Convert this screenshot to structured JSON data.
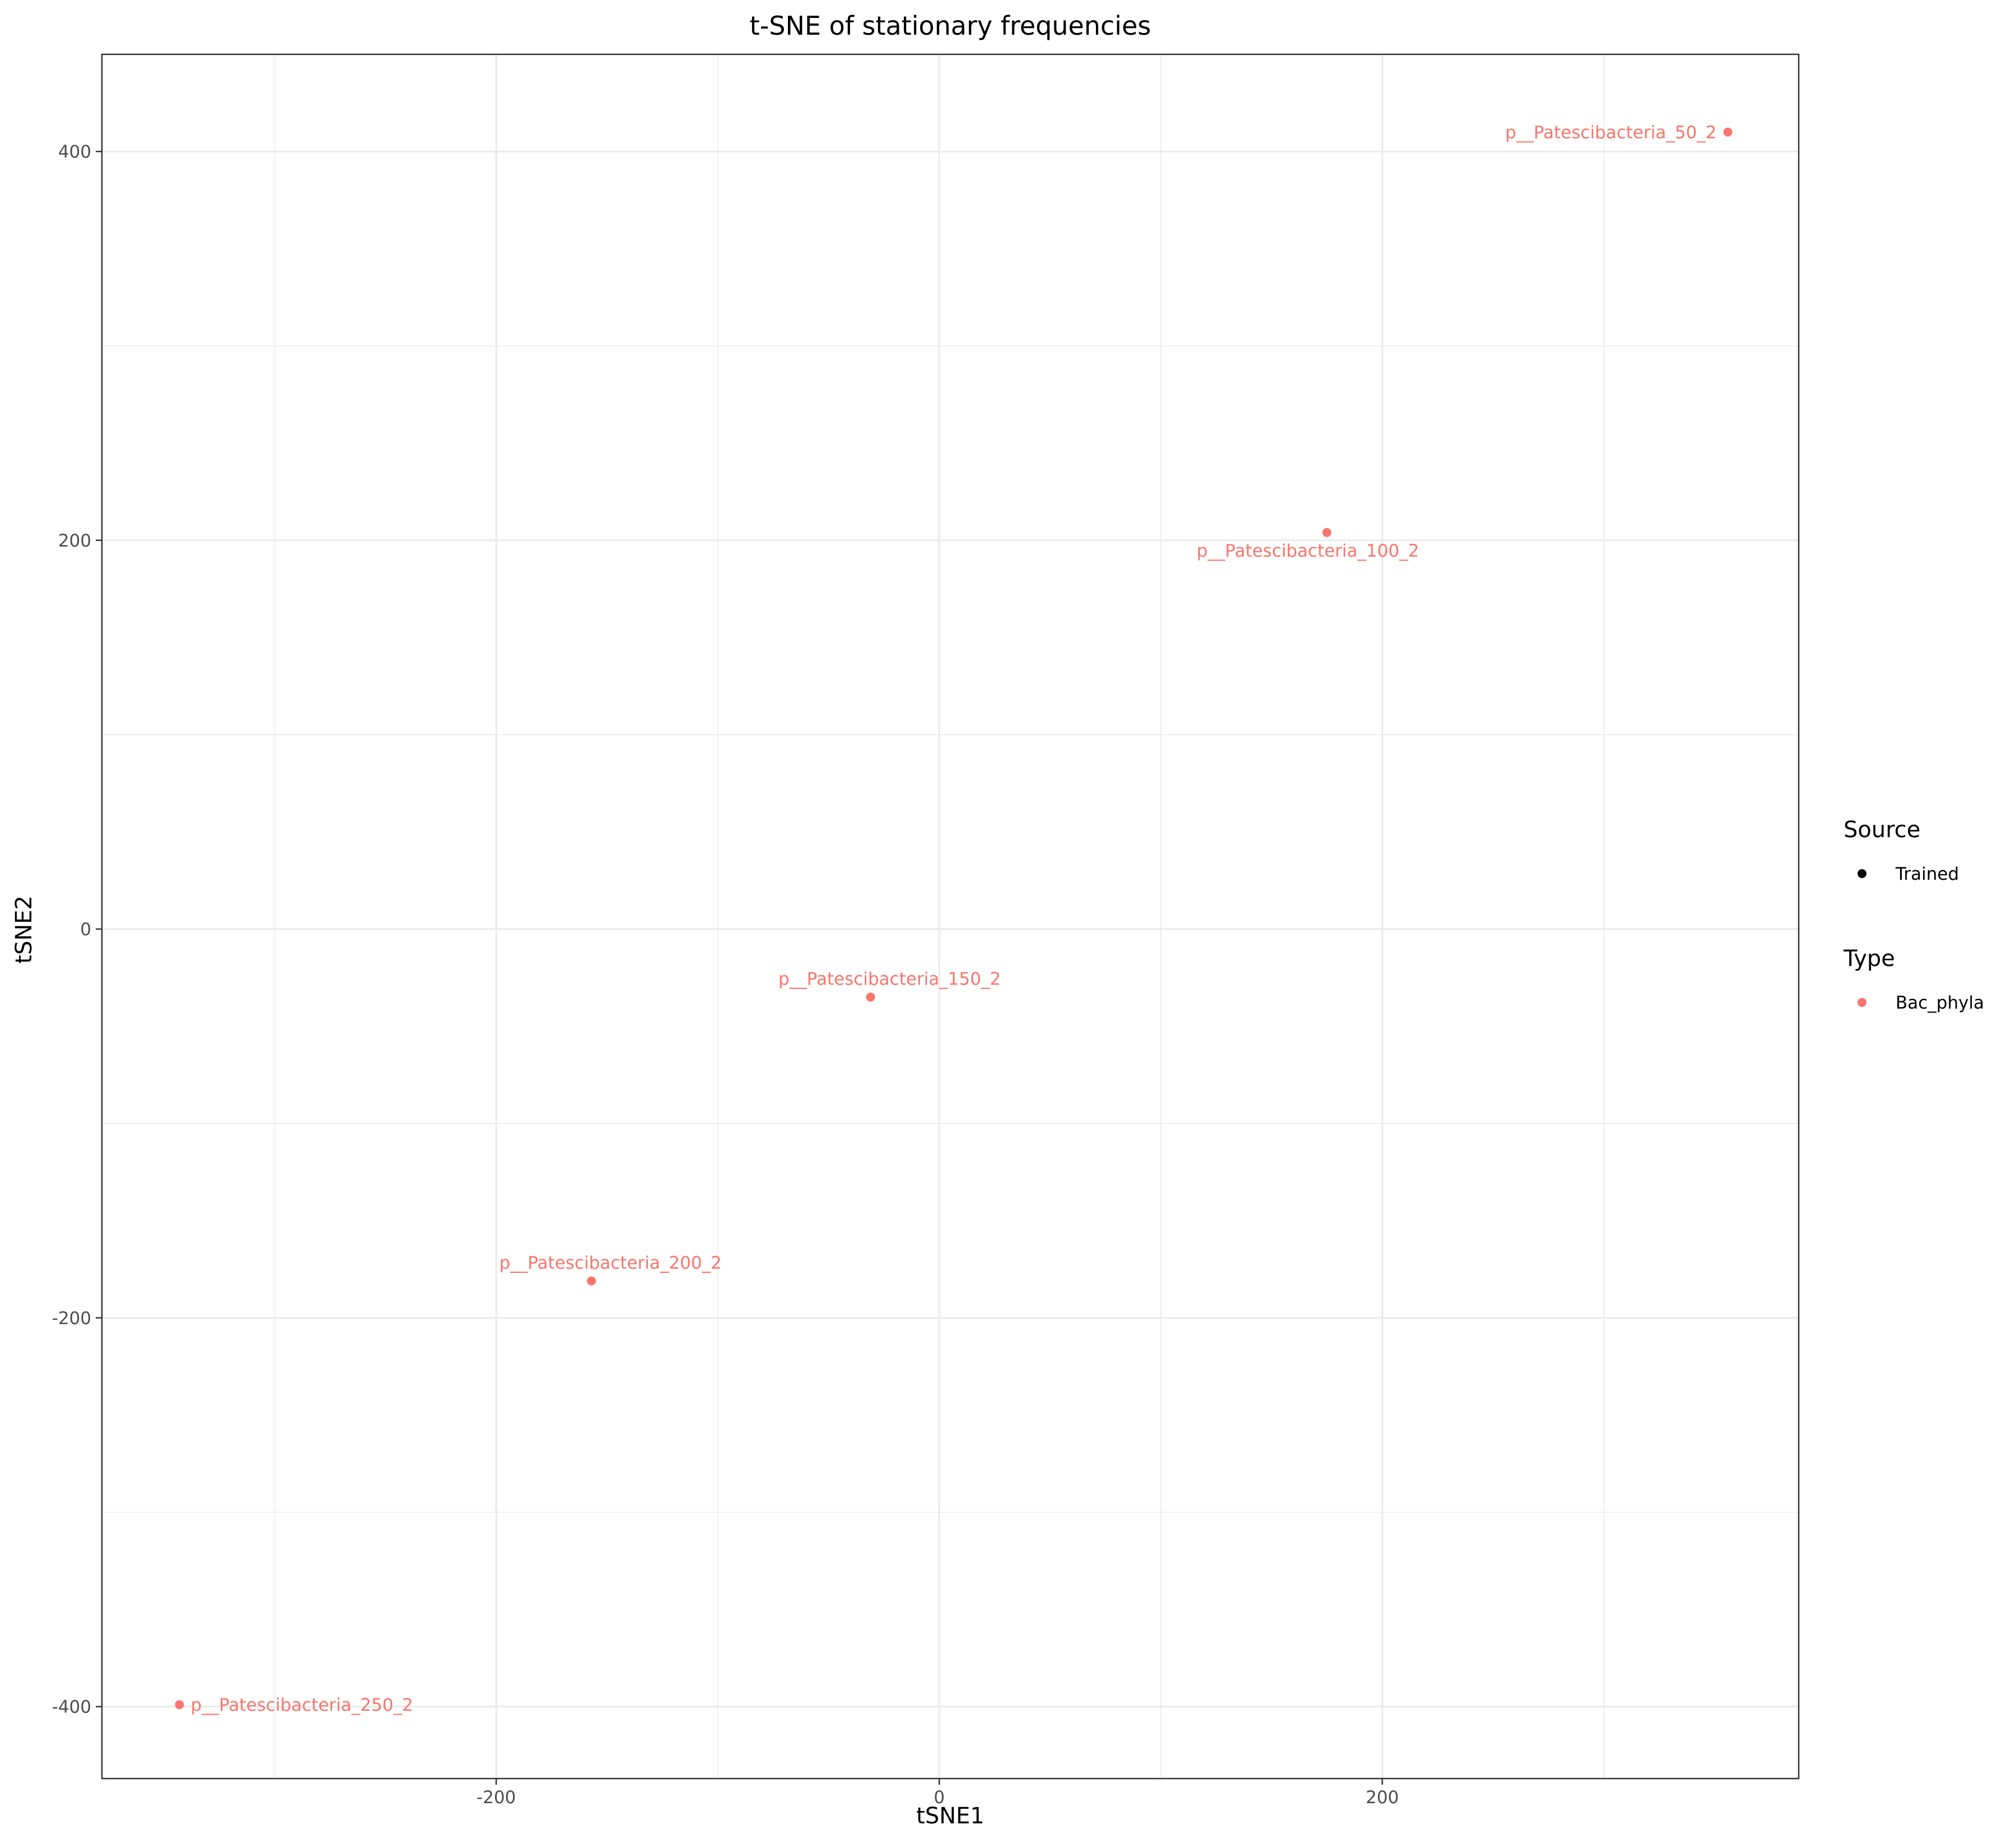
{
  "chart_data": {
    "type": "scatter",
    "title": "t-SNE of stationary frequencies",
    "xlabel": "tSNE1",
    "ylabel": "tSNE2",
    "xlim": [
      -378,
      388
    ],
    "ylim": [
      -437,
      450
    ],
    "xticks": [
      -200,
      0,
      200
    ],
    "yticks": [
      -400,
      -200,
      0,
      200,
      400
    ],
    "grid": true,
    "points": [
      {
        "x": 356,
        "y": 410,
        "label": "p__Patescibacteria_50_2",
        "type": "Bac_phyla",
        "source": "Trained"
      },
      {
        "x": 175,
        "y": 204,
        "label": "p__Patescibacteria_100_2",
        "type": "Bac_phyla",
        "source": "Trained"
      },
      {
        "x": -31,
        "y": -35,
        "label": "p__Patescibacteria_150_2",
        "type": "Bac_phyla",
        "source": "Trained"
      },
      {
        "x": -157,
        "y": -181,
        "label": "p__Patescibacteria_200_2",
        "type": "Bac_phyla",
        "source": "Trained"
      },
      {
        "x": -343,
        "y": -399,
        "label": "p__Patescibacteria_250_2",
        "type": "Bac_phyla",
        "source": "Trained"
      }
    ],
    "legend": {
      "position": "right",
      "groups": [
        {
          "title": "Source",
          "items": [
            {
              "label": "Trained",
              "color": "#000000"
            }
          ]
        },
        {
          "title": "Type",
          "items": [
            {
              "label": "Bac_phyla",
              "color": "#F8766D"
            }
          ]
        }
      ]
    },
    "colors": {
      "point": "#F8766D",
      "grid": "#ebebeb",
      "panel_border": "#333333"
    }
  }
}
